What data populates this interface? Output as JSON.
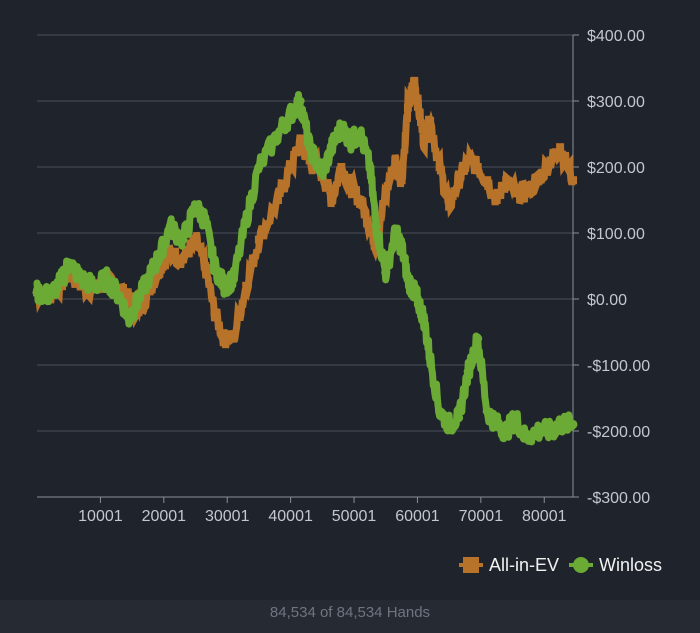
{
  "chart_data": {
    "type": "line",
    "title": "",
    "xlabel": "",
    "ylabel": "",
    "x_ticks": [
      10001,
      20001,
      30001,
      40001,
      50001,
      60001,
      70001,
      80001
    ],
    "x_tick_labels": [
      "10001",
      "20001",
      "30001",
      "40001",
      "50001",
      "60001",
      "70001",
      "80001"
    ],
    "xlim": [
      1,
      84534
    ],
    "y_ticks": [
      400,
      300,
      200,
      100,
      0,
      -100,
      -200,
      -300
    ],
    "y_tick_labels": [
      "$400.00",
      "$300.00",
      "$200.00",
      "$100.00",
      "$0.00",
      "-$100.00",
      "-$200.00",
      "-$300.00"
    ],
    "ylim": [
      -300,
      400
    ],
    "y_axis_side": "right",
    "grid": true,
    "legend_position": "bottom-right",
    "series": [
      {
        "name": "All-in-EV",
        "color": "#b8732a",
        "x": [
          0,
          2000,
          4000,
          5000,
          7000,
          9000,
          11000,
          13000,
          14500,
          16000,
          18000,
          19500,
          21000,
          23000,
          25000,
          26500,
          28000,
          29500,
          31000,
          33000,
          35000,
          38000,
          40000,
          41500,
          43000,
          45000,
          46500,
          48000,
          49500,
          51000,
          52500,
          53500,
          55000,
          56500,
          57500,
          58500,
          59500,
          60000,
          61000,
          62000,
          63500,
          65000,
          66500,
          68000,
          69500,
          71000,
          72500,
          74000,
          75500,
          77000,
          79000,
          81000,
          82500,
          84534
        ],
        "y": [
          10,
          5,
          25,
          40,
          20,
          15,
          25,
          15,
          0,
          -20,
          20,
          50,
          70,
          60,
          90,
          50,
          -20,
          -60,
          -60,
          20,
          90,
          150,
          200,
          235,
          210,
          190,
          150,
          200,
          170,
          150,
          110,
          80,
          160,
          210,
          180,
          290,
          330,
          300,
          240,
          270,
          200,
          140,
          180,
          210,
          200,
          180,
          150,
          180,
          160,
          160,
          180,
          210,
          230,
          180
        ]
      },
      {
        "name": "Winloss",
        "color": "#6aaa35",
        "x": [
          0,
          2000,
          4000,
          5000,
          7000,
          9000,
          11000,
          13000,
          14500,
          16000,
          18000,
          19500,
          21000,
          23000,
          25000,
          26500,
          28000,
          29500,
          31000,
          33000,
          35000,
          38000,
          40000,
          41500,
          43000,
          45000,
          46500,
          48000,
          49500,
          51000,
          52500,
          53500,
          55000,
          56500,
          57500,
          58500,
          59500,
          60000,
          61000,
          62000,
          63500,
          65000,
          66500,
          68000,
          69500,
          71000,
          72500,
          74000,
          75500,
          77000,
          79000,
          81000,
          82500,
          84534
        ],
        "y": [
          10,
          5,
          30,
          55,
          30,
          20,
          30,
          5,
          -30,
          0,
          40,
          70,
          110,
          90,
          140,
          120,
          50,
          20,
          30,
          120,
          200,
          250,
          280,
          300,
          230,
          190,
          230,
          260,
          240,
          250,
          200,
          110,
          40,
          100,
          80,
          30,
          10,
          0,
          -30,
          -90,
          -170,
          -190,
          -180,
          -110,
          -60,
          -170,
          -190,
          -200,
          -180,
          -210,
          -200,
          -200,
          -190,
          -190
        ]
      }
    ]
  },
  "footer": {
    "hands_count": "84,534 of 84,534 Hands"
  }
}
